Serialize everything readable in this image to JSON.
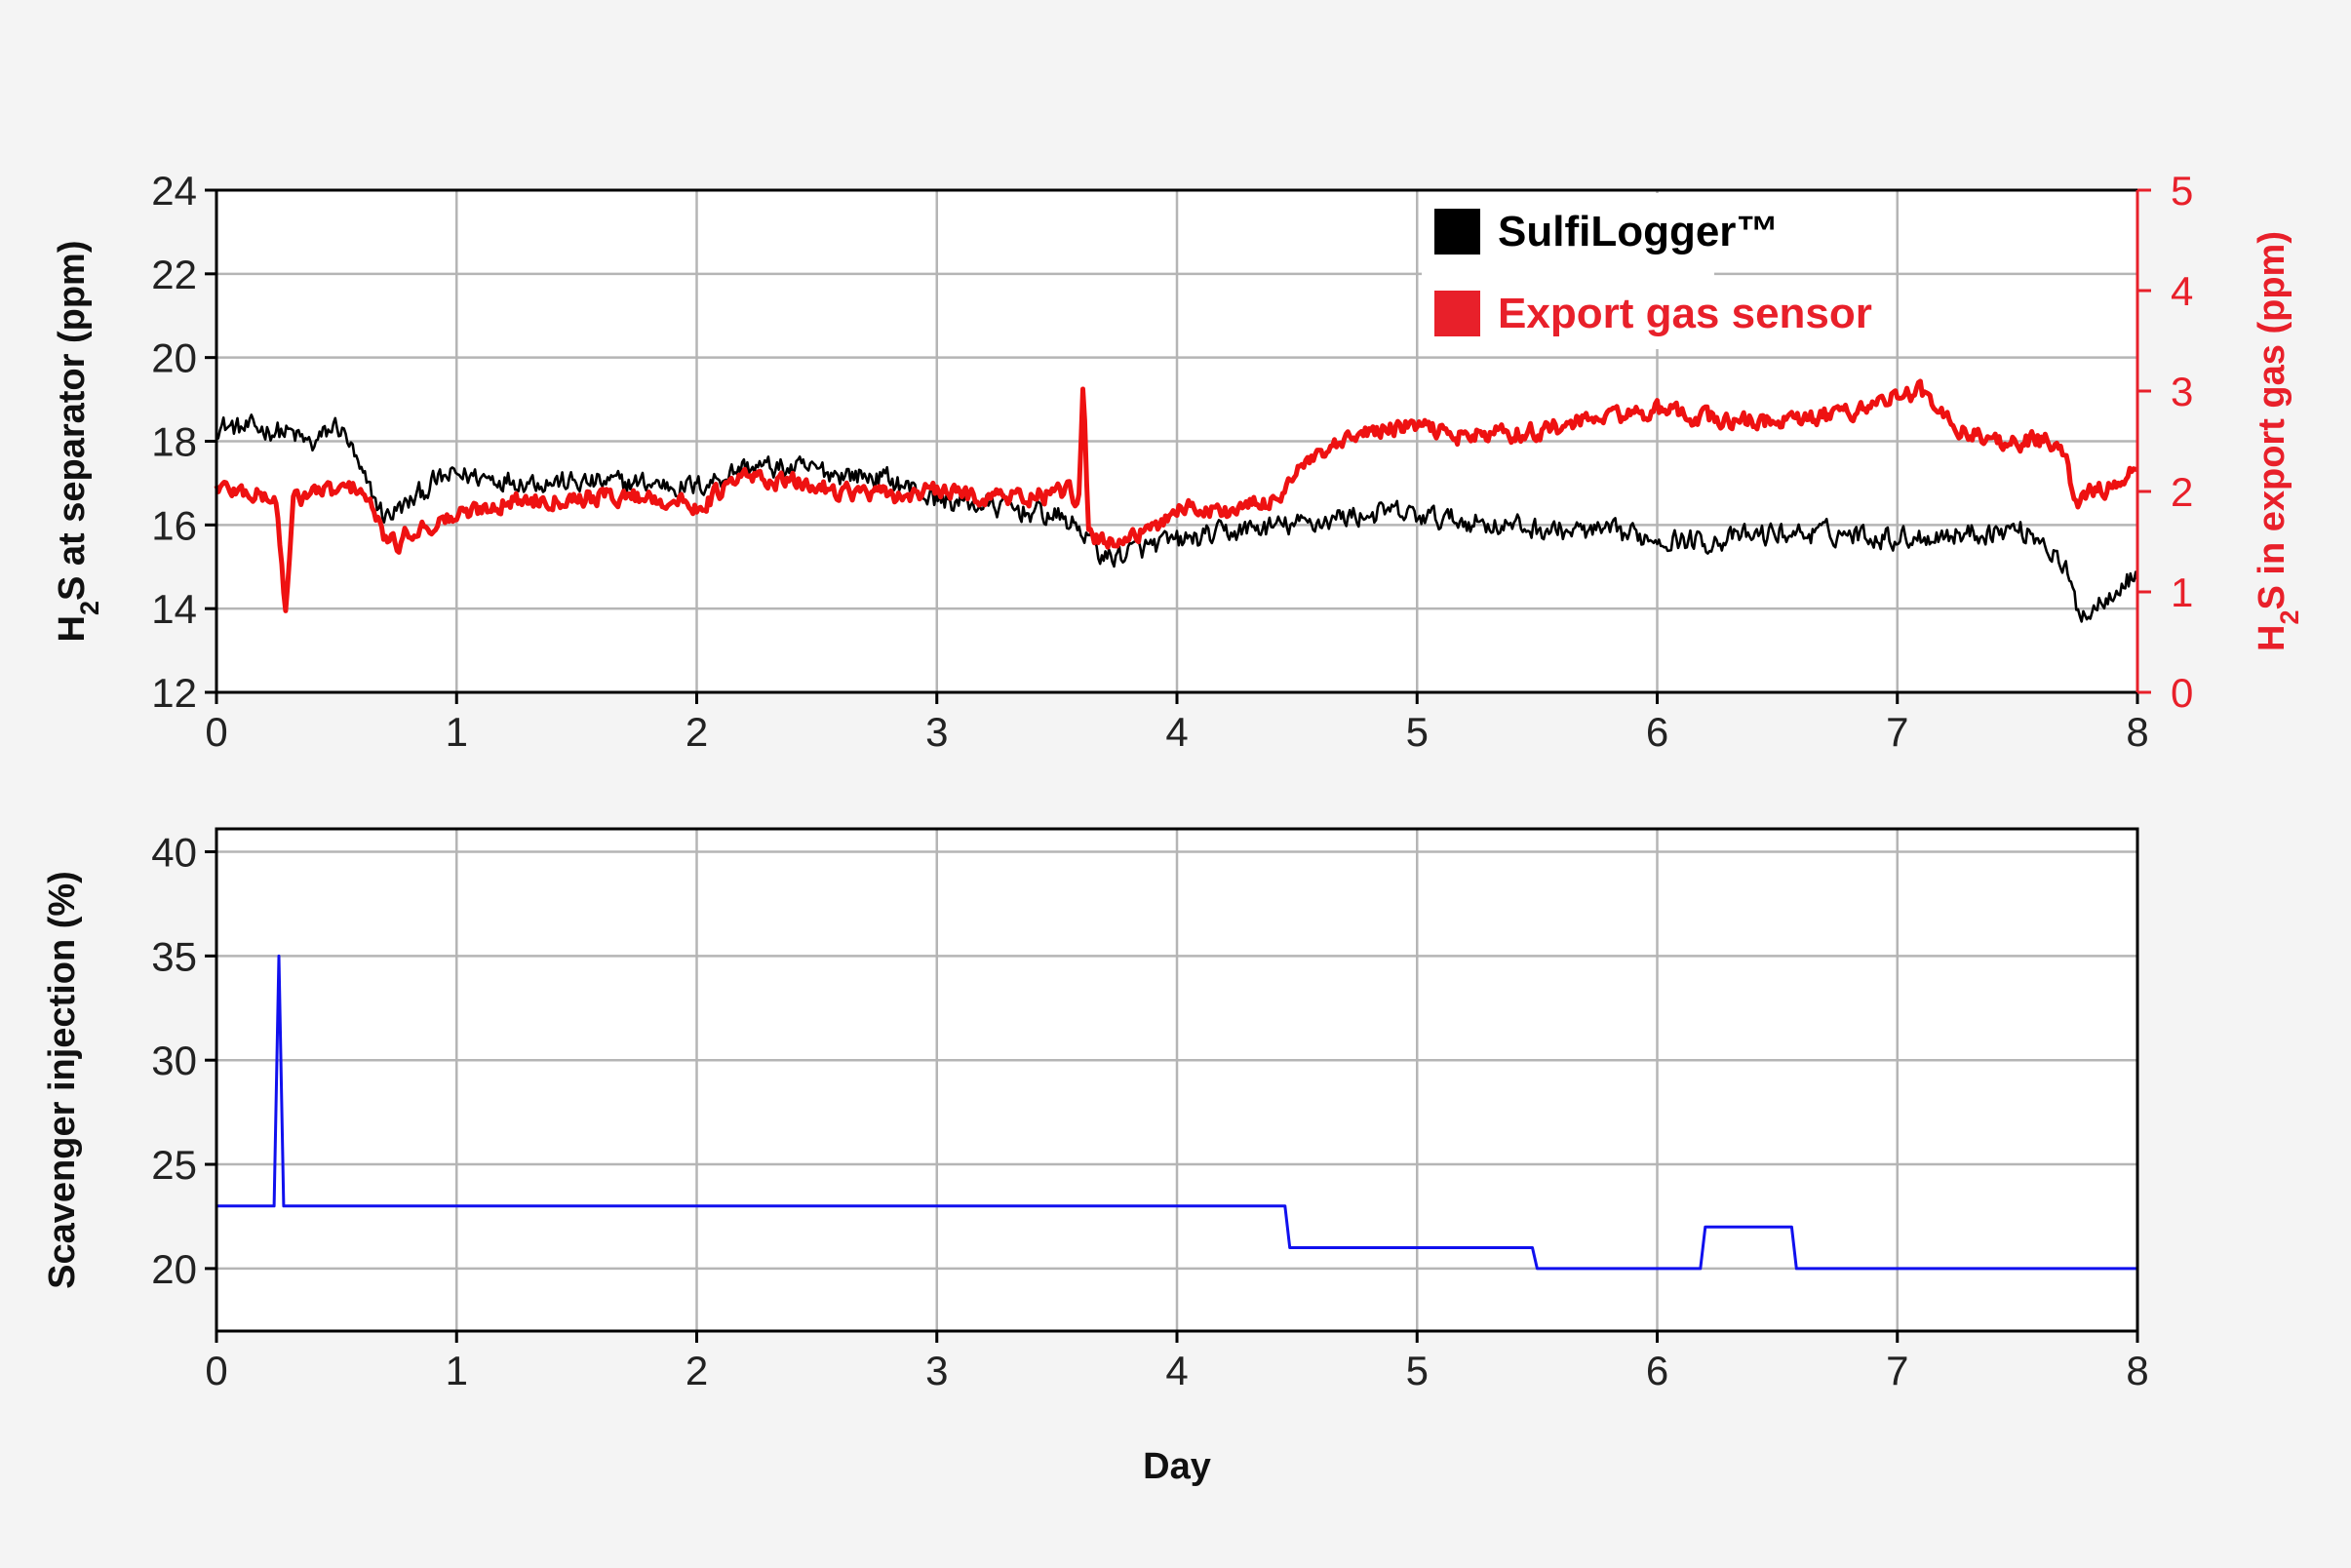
{
  "chart_data": [
    {
      "type": "line",
      "xlabel": "",
      "x_ticks": [
        "0",
        "1",
        "2",
        "3",
        "4",
        "5",
        "6",
        "7",
        "8"
      ],
      "xlim": [
        0,
        8
      ],
      "ylabel_left": {
        "main": "H",
        "sub": "2",
        "rest": "S at separator (ppm)"
      },
      "ylim_left": [
        12,
        24
      ],
      "y_ticks_left": [
        "12",
        "14",
        "16",
        "18",
        "20",
        "22",
        "24"
      ],
      "ylabel_right": {
        "main": "H",
        "sub": "2",
        "rest": "S in export gas (ppm)"
      },
      "ylim_right": [
        0,
        5
      ],
      "y_ticks_right": [
        "0",
        "1",
        "2",
        "3",
        "4",
        "5"
      ],
      "grid": true,
      "legend_position": "top-right",
      "colors": {
        "left_series": "#000000",
        "right_series": "#ee1111",
        "right_axis": "#e8202a",
        "grid": "#b5b5b5"
      },
      "series": [
        {
          "name": "SulfiLogger™",
          "axis": "left",
          "color": "#000000",
          "x": [
            0,
            0.1,
            0.2,
            0.3,
            0.4,
            0.5,
            0.55,
            0.6,
            0.7,
            0.8,
            0.9,
            1.0,
            1.2,
            1.5,
            1.8,
            2.0,
            2.2,
            2.5,
            2.8,
            3.0,
            3.3,
            3.5,
            3.6,
            3.7,
            3.9,
            4.0,
            4.3,
            4.5,
            4.7,
            4.9,
            5.0,
            5.2,
            5.5,
            5.8,
            6.0,
            6.2,
            6.5,
            6.8,
            7.0,
            7.3,
            7.5,
            7.6,
            7.7,
            7.75,
            7.8,
            7.9,
            8.0
          ],
          "values": [
            18.4,
            18.3,
            18.3,
            18.2,
            17.9,
            18.4,
            18.0,
            17.2,
            16.2,
            16.5,
            17.0,
            17.2,
            17.1,
            17.0,
            17.0,
            16.9,
            17.4,
            17.3,
            17.1,
            16.6,
            16.4,
            16.2,
            15.9,
            15.2,
            15.5,
            15.6,
            15.9,
            16.0,
            16.2,
            16.3,
            16.2,
            16.1,
            15.9,
            15.8,
            15.7,
            15.6,
            15.8,
            15.8,
            15.7,
            15.8,
            15.9,
            15.7,
            14.9,
            14.0,
            13.9,
            14.5,
            14.8
          ],
          "noise": 0.42
        },
        {
          "name": "Export gas sensor",
          "axis": "right",
          "color": "#ee1111",
          "x": [
            0,
            0.1,
            0.2,
            0.25,
            0.27,
            0.29,
            0.32,
            0.4,
            0.5,
            0.6,
            0.7,
            0.75,
            0.8,
            1.0,
            1.2,
            1.5,
            1.8,
            2.0,
            2.2,
            2.5,
            2.8,
            3.0,
            3.2,
            3.4,
            3.55,
            3.59,
            3.61,
            3.63,
            3.7,
            3.9,
            4.0,
            4.2,
            4.4,
            4.5,
            4.6,
            4.8,
            5.0,
            5.2,
            5.5,
            5.8,
            6.0,
            6.3,
            6.6,
            6.8,
            7.0,
            7.1,
            7.2,
            7.4,
            7.6,
            7.65,
            7.7,
            7.75,
            7.8,
            7.9,
            8.0
          ],
          "values": [
            2.05,
            2.0,
            1.95,
            1.9,
            1.3,
            0.8,
            1.9,
            2.0,
            2.0,
            2.05,
            1.55,
            1.45,
            1.6,
            1.75,
            1.9,
            1.95,
            1.95,
            1.85,
            2.15,
            2.05,
            1.95,
            2.0,
            1.95,
            1.95,
            2.0,
            1.8,
            3.1,
            1.55,
            1.5,
            1.6,
            1.85,
            1.8,
            1.9,
            2.2,
            2.35,
            2.6,
            2.65,
            2.55,
            2.6,
            2.75,
            2.8,
            2.7,
            2.7,
            2.8,
            2.95,
            3.0,
            2.7,
            2.5,
            2.5,
            2.5,
            2.3,
            1.85,
            2.0,
            2.05,
            2.2
          ],
          "noise": 0.14
        }
      ]
    },
    {
      "type": "line",
      "xlabel": "Day",
      "x_ticks": [
        "0",
        "1",
        "2",
        "3",
        "4",
        "5",
        "6",
        "7",
        "8"
      ],
      "xlim": [
        0,
        8
      ],
      "ylabel": "Scavenger injection (%)",
      "ylim": [
        17,
        41.1
      ],
      "y_ticks": [
        "20",
        "25",
        "30",
        "35",
        "40"
      ],
      "grid": true,
      "series": [
        {
          "color": "#1010ee",
          "x": [
            0,
            0.24,
            0.26,
            0.28,
            4.45,
            4.47,
            5.48,
            5.5,
            6.18,
            6.2,
            6.56,
            6.58,
            8.0
          ],
          "values": [
            23,
            23,
            35,
            23,
            23,
            21,
            21,
            20,
            20,
            22,
            22,
            20,
            20
          ]
        }
      ]
    }
  ],
  "legend": [
    {
      "label": "SulfiLogger™",
      "color": "#000000"
    },
    {
      "label": "Export gas sensor",
      "color": "#e8202a"
    }
  ]
}
